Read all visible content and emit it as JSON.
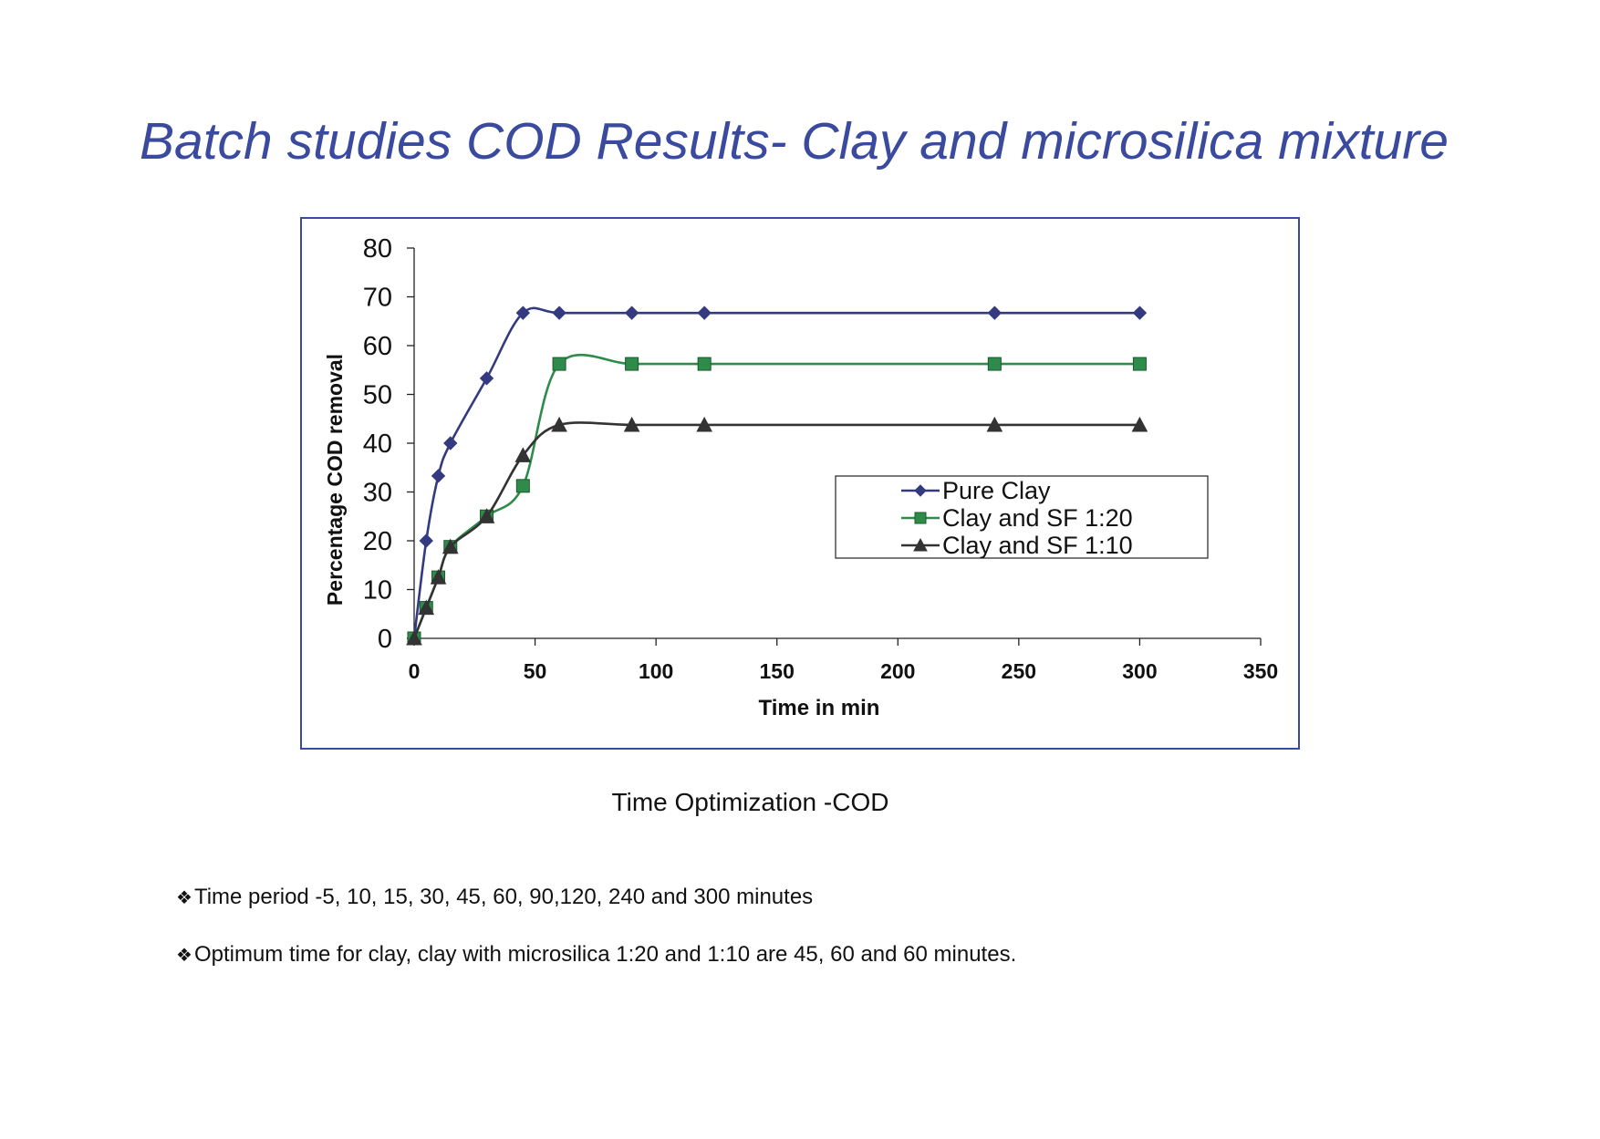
{
  "slide": {
    "title": "Batch studies COD  Results- Clay and microsilica mixture",
    "caption": "Time Optimization -COD",
    "bullets": [
      "Time period -5, 10, 15, 30, 45, 60, 90,120, 240 and 300 minutes",
      "Optimum time for clay, clay with microsilica 1:20 and 1:10 are 45, 60 and 60 minutes."
    ],
    "bullet_icon": "diamond-bullet-icon"
  },
  "chart_data": {
    "type": "line",
    "xlabel": "Time in min",
    "ylabel": "Percentage COD removal",
    "xlim": [
      0,
      350
    ],
    "ylim": [
      0,
      80
    ],
    "xticks": [
      0,
      50,
      100,
      150,
      200,
      250,
      300,
      350
    ],
    "yticks": [
      0,
      10,
      20,
      30,
      40,
      50,
      60,
      70,
      80
    ],
    "x": [
      0,
      5,
      10,
      15,
      30,
      45,
      60,
      90,
      120,
      240,
      300
    ],
    "grid": false,
    "legend": "right-middle",
    "smooth": true,
    "series": [
      {
        "name": "Pure Clay",
        "color": "#333a80",
        "marker": "diamond",
        "values": [
          0,
          20,
          33.3,
          40,
          53.3,
          66.7,
          66.7,
          66.7,
          66.7,
          66.7,
          66.7
        ]
      },
      {
        "name": "Clay and SF 1:20",
        "color": "#2e8b4a",
        "marker": "square",
        "values": [
          0,
          6.25,
          12.5,
          18.75,
          25,
          31.25,
          56.25,
          56.25,
          56.25,
          56.25,
          56.25
        ]
      },
      {
        "name": "Clay and SF 1:10",
        "color": "#333333",
        "marker": "triangle",
        "values": [
          0,
          6.25,
          12.5,
          18.75,
          25,
          37.5,
          43.75,
          43.75,
          43.75,
          43.75,
          43.75
        ]
      }
    ]
  }
}
